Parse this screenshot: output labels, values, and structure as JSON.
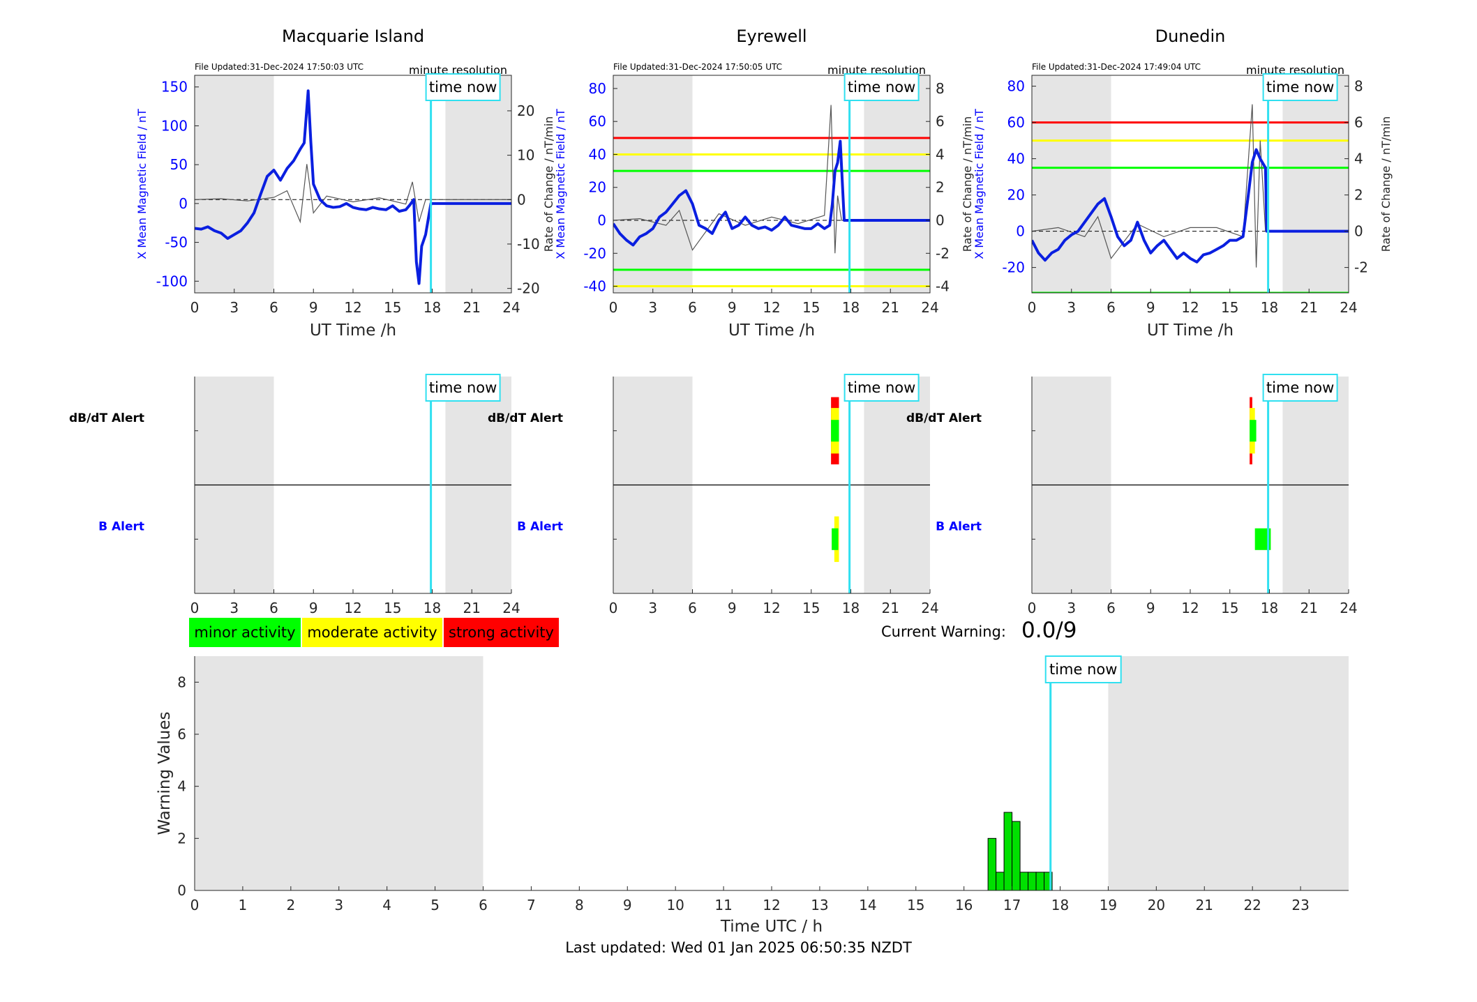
{
  "colors": {
    "axis_blue": "#0000ff",
    "line_blue": "#0a1fe0",
    "cyan": "#30e0f0",
    "shade": "#e5e5e5",
    "minor": "#00ff00",
    "moderate": "#ffff00",
    "strong": "#ff0000",
    "bar_green": "#00e000"
  },
  "chart_data": [
    {
      "type": "line",
      "title": "Macquarie Island",
      "file_updated": "File Updated:31-Dec-2024 17:50:03 UTC",
      "resolution_label": "minute resolution",
      "time_now_label": "time now",
      "time_now_h": 17.9,
      "xlabel": "UT Time /h",
      "ylabel_left": "X Mean Magnetic Field / nT",
      "ylabel_right": "Rate of Change / nT/min",
      "xlim": [
        0,
        24
      ],
      "xticks": [
        0,
        3,
        6,
        9,
        12,
        15,
        18,
        21,
        24
      ],
      "ylim_left": [
        -115,
        165
      ],
      "yticks_left": [
        -100,
        -50,
        0,
        50,
        100,
        150
      ],
      "ylim_right": [
        -21,
        28
      ],
      "yticks_right": [
        -20,
        -10,
        0,
        10,
        20
      ],
      "shaded_hours": [
        [
          0,
          6
        ],
        [
          19,
          24
        ]
      ],
      "thresholds": [],
      "series": [
        {
          "name": "X Mean Magnetic Field",
          "axis": "left",
          "x": [
            0,
            0.5,
            1,
            1.5,
            2,
            2.5,
            3,
            3.5,
            4,
            4.5,
            5,
            5.5,
            6,
            6.5,
            7,
            7.5,
            8,
            8.3,
            8.6,
            8.8,
            9,
            9.5,
            10,
            10.5,
            11,
            11.5,
            12,
            12.5,
            13,
            13.5,
            14,
            14.5,
            15,
            15.5,
            16,
            16.3,
            16.6,
            16.8,
            17,
            17.2,
            17.5,
            17.9,
            18.5,
            24
          ],
          "y": [
            -32,
            -33,
            -30,
            -35,
            -38,
            -45,
            -40,
            -35,
            -25,
            -12,
            12,
            35,
            43,
            30,
            45,
            55,
            70,
            78,
            145,
            80,
            25,
            5,
            -3,
            -5,
            -4,
            0,
            -5,
            -7,
            -8,
            -5,
            -7,
            -8,
            -3,
            -10,
            -8,
            -2,
            5,
            -75,
            -103,
            -55,
            -40,
            0,
            0,
            0
          ]
        },
        {
          "name": "Rate of Change",
          "axis": "right",
          "x": [
            0,
            2,
            4,
            6,
            7,
            8,
            8.5,
            9,
            10,
            12,
            14,
            16,
            16.5,
            17,
            17.5,
            24
          ],
          "y": [
            0,
            0.2,
            -0.3,
            0.5,
            2,
            -5,
            8,
            -3,
            0.8,
            -0.5,
            0.4,
            -1,
            4,
            -5,
            0,
            0
          ]
        }
      ]
    },
    {
      "type": "line",
      "title": "Eyrewell",
      "file_updated": "File Updated:31-Dec-2024 17:50:05 UTC",
      "resolution_label": "minute resolution",
      "time_now_label": "time now",
      "time_now_h": 17.9,
      "xlabel": "UT Time /h",
      "ylabel_left": "X Mean Magnetic Field / nT",
      "ylabel_right": "Rate of Change / nT/min",
      "xlim": [
        0,
        24
      ],
      "xticks": [
        0,
        3,
        6,
        9,
        12,
        15,
        18,
        21,
        24
      ],
      "ylim_left": [
        -44,
        88
      ],
      "yticks_left": [
        -40,
        -20,
        0,
        20,
        40,
        60,
        80
      ],
      "ylim_right": [
        -4.4,
        8.8
      ],
      "yticks_right": [
        -4,
        -2,
        0,
        2,
        4,
        6,
        8
      ],
      "shaded_hours": [
        [
          0,
          6
        ],
        [
          19,
          24
        ]
      ],
      "thresholds": [
        {
          "value": 50,
          "color": "#ff0000"
        },
        {
          "value": 40,
          "color": "#ffff00"
        },
        {
          "value": 30,
          "color": "#00ff00"
        },
        {
          "value": -30,
          "color": "#00ff00"
        },
        {
          "value": -40,
          "color": "#ffff00"
        }
      ],
      "series": [
        {
          "name": "X Mean Magnetic Field",
          "axis": "left",
          "x": [
            0,
            0.5,
            1,
            1.5,
            2,
            2.5,
            3,
            3.5,
            4,
            4.5,
            5,
            5.5,
            6,
            6.5,
            7,
            7.5,
            8,
            8.5,
            9,
            9.5,
            10,
            10.5,
            11,
            11.5,
            12,
            12.5,
            13,
            13.5,
            14,
            14.5,
            15,
            15.5,
            16,
            16.4,
            16.6,
            16.8,
            17,
            17.2,
            17.5,
            18,
            24
          ],
          "y": [
            -2,
            -8,
            -12,
            -15,
            -10,
            -8,
            -5,
            2,
            5,
            10,
            15,
            18,
            10,
            -3,
            -5,
            -8,
            0,
            5,
            -5,
            -3,
            2,
            -3,
            -5,
            -4,
            -6,
            -3,
            2,
            -3,
            -4,
            -5,
            -5,
            -2,
            -5,
            -3,
            10,
            30,
            35,
            48,
            0,
            0,
            0
          ]
        },
        {
          "name": "Rate of Change",
          "axis": "right",
          "x": [
            0,
            2,
            4,
            5,
            6,
            8,
            10,
            12,
            14,
            16,
            16.5,
            16.8,
            17,
            17.3,
            24
          ],
          "y": [
            0,
            0.1,
            -0.3,
            0.6,
            -1.8,
            0.4,
            -0.3,
            0.2,
            -0.2,
            0.3,
            7,
            -2,
            1.5,
            0,
            0
          ]
        }
      ]
    },
    {
      "type": "line",
      "title": "Dunedin",
      "file_updated": "File Updated:31-Dec-2024 17:49:04 UTC",
      "resolution_label": "minute resolution",
      "time_now_label": "time now",
      "time_now_h": 17.9,
      "xlabel": "UT Time /h",
      "ylabel_left": "X Mean Magnetic Field / nT",
      "ylabel_right": "Rate of Change / nT/min",
      "xlim": [
        0,
        24
      ],
      "xticks": [
        0,
        3,
        6,
        9,
        12,
        15,
        18,
        21,
        24
      ],
      "ylim_left": [
        -34,
        86
      ],
      "yticks_left": [
        -20,
        0,
        20,
        40,
        60,
        80
      ],
      "ylim_right": [
        -3.4,
        8.6
      ],
      "yticks_right": [
        -2,
        0,
        2,
        4,
        6,
        8
      ],
      "shaded_hours": [
        [
          0,
          6
        ],
        [
          19,
          24
        ]
      ],
      "thresholds": [
        {
          "value": 60,
          "color": "#ff0000"
        },
        {
          "value": 50,
          "color": "#ffff00"
        },
        {
          "value": 35,
          "color": "#00ff00"
        },
        {
          "value": -34,
          "color": "#00ff00"
        }
      ],
      "series": [
        {
          "name": "X Mean Magnetic Field",
          "axis": "left",
          "x": [
            0,
            0.5,
            1,
            1.5,
            2,
            2.5,
            3,
            3.5,
            4,
            4.5,
            5,
            5.5,
            6,
            6.5,
            7,
            7.5,
            8,
            8.5,
            9,
            9.5,
            10,
            10.5,
            11,
            11.5,
            12,
            12.5,
            13,
            13.5,
            14,
            14.5,
            15,
            15.5,
            16,
            16.4,
            16.7,
            17,
            17.3,
            17.7,
            17.8,
            18.2,
            24
          ],
          "y": [
            -5,
            -12,
            -16,
            -12,
            -10,
            -5,
            -2,
            0,
            5,
            10,
            15,
            18,
            8,
            -3,
            -8,
            -5,
            5,
            -5,
            -12,
            -8,
            -5,
            -10,
            -15,
            -12,
            -15,
            -17,
            -13,
            -12,
            -10,
            -8,
            -5,
            -5,
            -3,
            20,
            38,
            45,
            40,
            35,
            0,
            0,
            0
          ]
        },
        {
          "name": "Rate of Change",
          "axis": "right",
          "x": [
            0,
            2,
            4,
            5,
            6,
            8,
            10,
            12,
            14,
            16,
            16.7,
            17,
            17.3,
            17.7,
            24
          ],
          "y": [
            0,
            0.2,
            -0.3,
            0.8,
            -1.5,
            0.4,
            -0.3,
            0.2,
            0.2,
            -0.3,
            7,
            -2,
            5,
            0,
            0
          ]
        }
      ]
    },
    {
      "type": "heatmap",
      "panel": "Macquarie Island",
      "time_now_label": "time now",
      "time_now_h": 17.9,
      "xlim": [
        0,
        24
      ],
      "xticks": [
        0,
        3,
        6,
        9,
        12,
        15,
        18,
        21,
        24
      ],
      "shaded_hours": [
        [
          0,
          6
        ],
        [
          19,
          24
        ]
      ],
      "rows": [
        "dB/dT Alert",
        "B Alert"
      ],
      "segments": []
    },
    {
      "type": "heatmap",
      "panel": "Eyrewell",
      "time_now_label": "time now",
      "time_now_h": 17.9,
      "xlim": [
        0,
        24
      ],
      "xticks": [
        0,
        3,
        6,
        9,
        12,
        15,
        18,
        21,
        24
      ],
      "shaded_hours": [
        [
          0,
          6
        ],
        [
          19,
          24
        ]
      ],
      "rows": [
        "dB/dT Alert",
        "B Alert"
      ],
      "segments": [
        {
          "row": 0,
          "x0": 16.5,
          "x1": 17.1,
          "level": "strong",
          "height": 0.62
        },
        {
          "row": 0,
          "x0": 16.5,
          "x1": 17.1,
          "level": "moderate",
          "height": 0.42
        },
        {
          "row": 0,
          "x0": 16.5,
          "x1": 17.1,
          "level": "minor",
          "height": 0.2
        },
        {
          "row": 1,
          "x0": 16.75,
          "x1": 17.1,
          "level": "moderate",
          "height": 0.42
        },
        {
          "row": 1,
          "x0": 16.55,
          "x1": 17.05,
          "level": "minor",
          "height": 0.2
        }
      ]
    },
    {
      "type": "heatmap",
      "panel": "Dunedin",
      "time_now_label": "time now",
      "time_now_h": 17.9,
      "xlim": [
        0,
        24
      ],
      "xticks": [
        0,
        3,
        6,
        9,
        12,
        15,
        18,
        21,
        24
      ],
      "shaded_hours": [
        [
          0,
          6
        ],
        [
          19,
          24
        ]
      ],
      "rows": [
        "dB/dT Alert",
        "B Alert"
      ],
      "segments": [
        {
          "row": 0,
          "x0": 16.5,
          "x1": 16.7,
          "level": "strong",
          "height": 0.62
        },
        {
          "row": 0,
          "x0": 16.5,
          "x1": 16.9,
          "level": "moderate",
          "height": 0.42
        },
        {
          "row": 0,
          "x0": 16.5,
          "x1": 17.0,
          "level": "minor",
          "height": 0.2
        },
        {
          "row": 1,
          "x0": 16.9,
          "x1": 18.1,
          "level": "minor",
          "height": 0.2
        }
      ]
    },
    {
      "type": "bar",
      "xlabel": "Time UTC / h",
      "ylabel": "Warning Values",
      "time_now_label": "time now",
      "time_now_h": 17.8,
      "xlim": [
        0,
        24
      ],
      "xticks": [
        0,
        1,
        2,
        3,
        4,
        5,
        6,
        7,
        8,
        9,
        10,
        11,
        12,
        13,
        14,
        15,
        16,
        17,
        18,
        19,
        20,
        21,
        22,
        23
      ],
      "ylim": [
        0,
        9
      ],
      "yticks": [
        0,
        2,
        4,
        6,
        8
      ],
      "shaded_hours": [
        [
          0,
          6
        ],
        [
          19,
          24
        ]
      ],
      "bar_width_h": 0.1667,
      "x": [
        16.5,
        16.667,
        16.833,
        17.0,
        17.167,
        17.333,
        17.5,
        17.667
      ],
      "values": [
        2,
        0.7,
        3,
        2.65,
        0.7,
        0.7,
        0.7,
        0.7
      ]
    }
  ],
  "legend": {
    "minor": "minor activity",
    "moderate": "moderate activity",
    "strong": "strong activity"
  },
  "current_warning": {
    "label": "Current Warning:",
    "value": "0.0/9"
  },
  "last_updated": "Last updated: Wed 01 Jan 2025 06:50:35 NZDT"
}
